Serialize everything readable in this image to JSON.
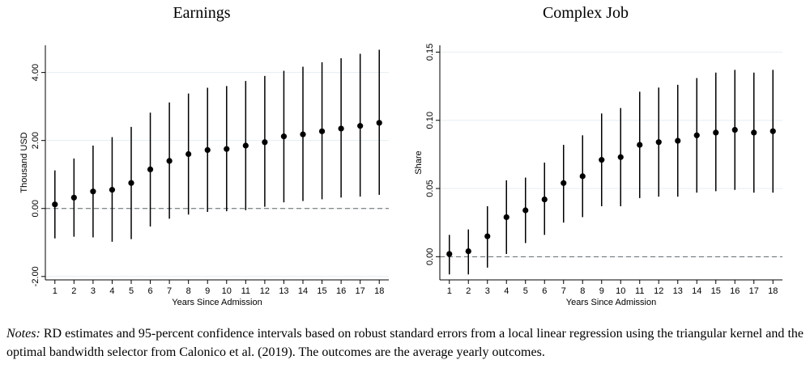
{
  "chart_data": [
    {
      "type": "scatter",
      "title": "Earnings",
      "xlabel": "Years Since Admission",
      "ylabel": "Thousand USD",
      "ylim": [
        -2.1,
        4.8
      ],
      "xlim": [
        0.5,
        18.5
      ],
      "yticks": [
        "-2.00",
        "0.00",
        "2.00",
        "4.00"
      ],
      "ytick_values": [
        -2,
        0,
        2,
        4
      ],
      "xticks": [
        "1",
        "2",
        "3",
        "4",
        "5",
        "6",
        "7",
        "8",
        "9",
        "10",
        "11",
        "12",
        "13",
        "14",
        "15",
        "16",
        "17",
        "18"
      ],
      "reference_line": 0,
      "grid": "horizontal",
      "x": [
        1,
        2,
        3,
        4,
        5,
        6,
        7,
        8,
        9,
        10,
        11,
        12,
        13,
        14,
        15,
        16,
        17,
        18
      ],
      "y": [
        0.12,
        0.32,
        0.5,
        0.55,
        0.75,
        1.15,
        1.4,
        1.6,
        1.72,
        1.75,
        1.85,
        1.95,
        2.12,
        2.18,
        2.27,
        2.35,
        2.43,
        2.52
      ],
      "ci_low": [
        -0.88,
        -0.83,
        -0.85,
        -0.98,
        -0.9,
        -0.53,
        -0.3,
        -0.18,
        -0.1,
        -0.08,
        -0.05,
        0.05,
        0.18,
        0.22,
        0.27,
        0.32,
        0.35,
        0.4
      ],
      "ci_high": [
        1.12,
        1.47,
        1.85,
        2.1,
        2.4,
        2.82,
        3.12,
        3.38,
        3.55,
        3.6,
        3.75,
        3.9,
        4.05,
        4.17,
        4.3,
        4.42,
        4.55,
        4.67
      ],
      "line_color": "#000000",
      "marker_color": "#000000",
      "grid_color": "#e4eef2",
      "ref_color": "#666666"
    },
    {
      "type": "scatter",
      "title": "Complex Job",
      "xlabel": "Years Since Admission",
      "ylabel": "Share",
      "ylim": [
        -0.017,
        0.155
      ],
      "xlim": [
        0.5,
        18.5
      ],
      "yticks": [
        "0.00",
        "0.05",
        "0.10",
        "0.15"
      ],
      "ytick_values": [
        0,
        0.05,
        0.1,
        0.15
      ],
      "xticks": [
        "1",
        "2",
        "3",
        "4",
        "5",
        "6",
        "7",
        "8",
        "9",
        "10",
        "11",
        "12",
        "13",
        "14",
        "15",
        "16",
        "17",
        "18"
      ],
      "reference_line": 0,
      "grid": "horizontal",
      "x": [
        1,
        2,
        3,
        4,
        5,
        6,
        7,
        8,
        9,
        10,
        11,
        12,
        13,
        14,
        15,
        16,
        17,
        18
      ],
      "y": [
        0.002,
        0.004,
        0.015,
        0.029,
        0.034,
        0.042,
        0.054,
        0.059,
        0.071,
        0.073,
        0.082,
        0.084,
        0.085,
        0.089,
        0.091,
        0.093,
        0.091,
        0.092
      ],
      "ci_low": [
        -0.013,
        -0.013,
        -0.008,
        0.002,
        0.01,
        0.016,
        0.025,
        0.029,
        0.037,
        0.037,
        0.043,
        0.044,
        0.044,
        0.047,
        0.048,
        0.049,
        0.047,
        0.047
      ],
      "ci_high": [
        0.016,
        0.02,
        0.037,
        0.056,
        0.058,
        0.069,
        0.082,
        0.089,
        0.105,
        0.109,
        0.121,
        0.124,
        0.126,
        0.131,
        0.135,
        0.137,
        0.135,
        0.137
      ],
      "line_color": "#000000",
      "marker_color": "#000000",
      "grid_color": "#e4eef2",
      "ref_color": "#666666"
    }
  ],
  "notes": {
    "label": "Notes:",
    "text": " RD estimates and 95-percent confidence intervals based on robust standard errors from a local linear regression using the triangular kernel and the optimal bandwidth selector from Calonico et al. (2019). The outcomes are the average yearly outcomes."
  }
}
